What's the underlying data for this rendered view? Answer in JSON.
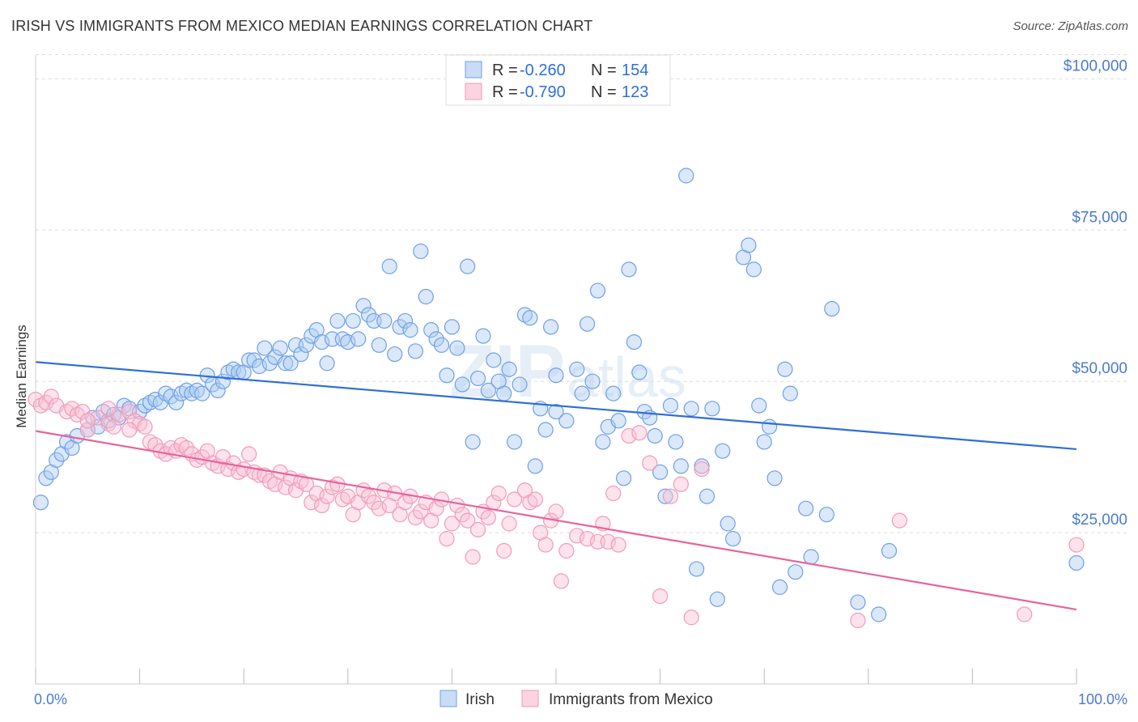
{
  "title": "IRISH VS IMMIGRANTS FROM MEXICO MEDIAN EARNINGS CORRELATION CHART",
  "source": "Source: ZipAtlas.com",
  "watermark": {
    "a": "ZIP",
    "b": "atlas"
  },
  "colors": {
    "irish": "#6fa0e6",
    "irish_line": "#2f6fd6",
    "mexico": "#f29bb8",
    "mexico_line": "#e8649a",
    "grid": "#dddddd"
  },
  "legend": {
    "rows": [
      {
        "r_label": "R =",
        "r_value": "-0.260",
        "n_label": "N =",
        "n_value": "154"
      },
      {
        "r_label": "R =",
        "r_value": "-0.790",
        "n_label": "N =",
        "n_value": "123"
      }
    ]
  },
  "bottom_legend": [
    "Irish",
    "Immigrants from Mexico"
  ],
  "chart_data": {
    "type": "scatter",
    "ylabel": "Median Earnings",
    "xlim": [
      0,
      100
    ],
    "ylim": [
      0,
      105000
    ],
    "y_ticks": [
      25000,
      50000,
      75000,
      100000
    ],
    "y_tick_labels": [
      "$25,000",
      "$50,000",
      "$75,000",
      "$100,000"
    ],
    "x_tick_labels": [
      "0.0%",
      "100.0%"
    ],
    "grid": "horizontal dashed",
    "legend_position": "top-center",
    "series": [
      {
        "name": "Irish",
        "trend": {
          "x": [
            0,
            100
          ],
          "y": [
            53200,
            38800
          ]
        },
        "points": [
          [
            0.5,
            30000
          ],
          [
            1,
            34000
          ],
          [
            1.5,
            35000
          ],
          [
            2,
            37000
          ],
          [
            2.5,
            38000
          ],
          [
            3,
            40000
          ],
          [
            3.5,
            39000
          ],
          [
            4,
            41000
          ],
          [
            5,
            42000
          ],
          [
            5.5,
            44000
          ],
          [
            6,
            42500
          ],
          [
            6.5,
            45000
          ],
          [
            7,
            43500
          ],
          [
            7.5,
            44500
          ],
          [
            8,
            44000
          ],
          [
            8.5,
            46000
          ],
          [
            9,
            45500
          ],
          [
            10,
            45000
          ],
          [
            10.5,
            46000
          ],
          [
            11,
            46500
          ],
          [
            11.5,
            47000
          ],
          [
            12,
            46500
          ],
          [
            12.5,
            48000
          ],
          [
            13,
            47500
          ],
          [
            13.5,
            46500
          ],
          [
            14,
            48000
          ],
          [
            14.5,
            48500
          ],
          [
            15,
            48000
          ],
          [
            15.5,
            48500
          ],
          [
            16,
            48000
          ],
          [
            16.5,
            51000
          ],
          [
            17,
            49500
          ],
          [
            17.5,
            48500
          ],
          [
            18,
            50000
          ],
          [
            18.5,
            51500
          ],
          [
            19,
            52000
          ],
          [
            19.5,
            51500
          ],
          [
            20,
            51500
          ],
          [
            20.5,
            53500
          ],
          [
            21,
            53500
          ],
          [
            21.5,
            52500
          ],
          [
            22,
            55500
          ],
          [
            22.5,
            53000
          ],
          [
            23,
            54000
          ],
          [
            23.5,
            55500
          ],
          [
            24,
            53000
          ],
          [
            24.5,
            53000
          ],
          [
            25,
            56000
          ],
          [
            25.5,
            54500
          ],
          [
            26,
            56000
          ],
          [
            26.5,
            57500
          ],
          [
            27,
            58500
          ],
          [
            27.5,
            56500
          ],
          [
            28,
            53000
          ],
          [
            28.5,
            57000
          ],
          [
            29,
            60000
          ],
          [
            29.5,
            57000
          ],
          [
            30,
            56500
          ],
          [
            30.5,
            60000
          ],
          [
            31,
            57000
          ],
          [
            31.5,
            62500
          ],
          [
            32,
            61000
          ],
          [
            32.5,
            60000
          ],
          [
            33,
            56000
          ],
          [
            33.5,
            60000
          ],
          [
            34,
            69000
          ],
          [
            34.5,
            54500
          ],
          [
            35,
            59000
          ],
          [
            35.5,
            60000
          ],
          [
            36,
            58500
          ],
          [
            36.5,
            55000
          ],
          [
            37,
            71500
          ],
          [
            37.5,
            64000
          ],
          [
            38,
            58500
          ],
          [
            38.5,
            57000
          ],
          [
            39,
            56000
          ],
          [
            39.5,
            51000
          ],
          [
            40,
            59000
          ],
          [
            40.5,
            55500
          ],
          [
            41,
            49500
          ],
          [
            41.5,
            69000
          ],
          [
            42,
            40000
          ],
          [
            42.5,
            50500
          ],
          [
            43,
            57500
          ],
          [
            43.5,
            48500
          ],
          [
            44,
            53500
          ],
          [
            44.5,
            50000
          ],
          [
            45,
            48000
          ],
          [
            45.5,
            52000
          ],
          [
            46,
            40000
          ],
          [
            46.5,
            49500
          ],
          [
            47,
            61000
          ],
          [
            47.5,
            60500
          ],
          [
            48,
            36000
          ],
          [
            48.5,
            45500
          ],
          [
            49,
            42000
          ],
          [
            49.5,
            59000
          ],
          [
            50,
            51000
          ],
          [
            51,
            43500
          ],
          [
            52,
            52000
          ],
          [
            52.5,
            48000
          ],
          [
            53,
            59500
          ],
          [
            53.5,
            50000
          ],
          [
            54,
            65000
          ],
          [
            54.5,
            40000
          ],
          [
            55,
            42500
          ],
          [
            55.5,
            48000
          ],
          [
            56,
            43500
          ],
          [
            56.5,
            34000
          ],
          [
            57,
            68500
          ],
          [
            57.5,
            56500
          ],
          [
            58,
            51500
          ],
          [
            58.5,
            45000
          ],
          [
            59,
            44000
          ],
          [
            59.5,
            41000
          ],
          [
            60,
            35000
          ],
          [
            60.5,
            31000
          ],
          [
            61,
            46000
          ],
          [
            61.5,
            40000
          ],
          [
            62,
            36000
          ],
          [
            62.5,
            84000
          ],
          [
            63,
            45500
          ],
          [
            63.5,
            19000
          ],
          [
            64,
            36000
          ],
          [
            64.5,
            31000
          ],
          [
            65,
            45500
          ],
          [
            65.5,
            14000
          ],
          [
            66,
            38500
          ],
          [
            66.5,
            26500
          ],
          [
            67,
            24000
          ],
          [
            68,
            70500
          ],
          [
            68.5,
            72500
          ],
          [
            69,
            68500
          ],
          [
            69.5,
            46000
          ],
          [
            70,
            40000
          ],
          [
            70.5,
            42500
          ],
          [
            71,
            34000
          ],
          [
            71.5,
            16000
          ],
          [
            72,
            52000
          ],
          [
            72.5,
            48000
          ],
          [
            73,
            18500
          ],
          [
            74,
            29000
          ],
          [
            74.5,
            21000
          ],
          [
            76,
            28000
          ],
          [
            76.5,
            62000
          ],
          [
            79,
            13500
          ],
          [
            81,
            11500
          ],
          [
            82,
            22000
          ],
          [
            100,
            20000
          ],
          [
            50,
            45000
          ]
        ]
      },
      {
        "name": "Immigrants from Mexico",
        "trend": {
          "x": [
            0,
            100
          ],
          "y": [
            41800,
            12300
          ]
        },
        "points": [
          [
            0,
            47000
          ],
          [
            0.5,
            46000
          ],
          [
            1,
            46500
          ],
          [
            1.5,
            47500
          ],
          [
            2,
            46000
          ],
          [
            3,
            45000
          ],
          [
            3.5,
            45500
          ],
          [
            4,
            44500
          ],
          [
            4.5,
            45000
          ],
          [
            5,
            42000
          ],
          [
            6,
            44000
          ],
          [
            7,
            43000
          ],
          [
            7.5,
            42500
          ],
          [
            8,
            44500
          ],
          [
            9,
            45000
          ],
          [
            9.5,
            43500
          ],
          [
            10,
            43000
          ],
          [
            10.5,
            42500
          ],
          [
            11,
            40000
          ],
          [
            11.5,
            39500
          ],
          [
            12,
            38500
          ],
          [
            12.5,
            38000
          ],
          [
            13,
            39000
          ],
          [
            13.5,
            38500
          ],
          [
            14,
            39500
          ],
          [
            14.5,
            39000
          ],
          [
            15,
            38000
          ],
          [
            15.5,
            37000
          ],
          [
            16,
            37500
          ],
          [
            16.5,
            38500
          ],
          [
            17,
            36500
          ],
          [
            17.5,
            36000
          ],
          [
            18,
            37500
          ],
          [
            18.5,
            35500
          ],
          [
            19,
            36500
          ],
          [
            19.5,
            35000
          ],
          [
            20,
            35500
          ],
          [
            20.5,
            38000
          ],
          [
            21,
            35000
          ],
          [
            21.5,
            34500
          ],
          [
            22,
            34500
          ],
          [
            22.5,
            33500
          ],
          [
            23,
            33000
          ],
          [
            23.5,
            35000
          ],
          [
            24,
            32500
          ],
          [
            24.5,
            34000
          ],
          [
            25,
            32000
          ],
          [
            25.5,
            33500
          ],
          [
            26,
            33000
          ],
          [
            26.5,
            30000
          ],
          [
            27,
            31500
          ],
          [
            27.5,
            29500
          ],
          [
            28,
            31000
          ],
          [
            28.5,
            32500
          ],
          [
            29,
            33000
          ],
          [
            29.5,
            30500
          ],
          [
            30,
            31000
          ],
          [
            30.5,
            28000
          ],
          [
            31,
            30000
          ],
          [
            31.5,
            32000
          ],
          [
            32,
            31000
          ],
          [
            32.5,
            30000
          ],
          [
            33,
            29000
          ],
          [
            33.5,
            32000
          ],
          [
            34,
            29500
          ],
          [
            34.5,
            31500
          ],
          [
            35,
            28000
          ],
          [
            35.5,
            30000
          ],
          [
            36,
            31000
          ],
          [
            36.5,
            27500
          ],
          [
            37,
            28500
          ],
          [
            37.5,
            30000
          ],
          [
            38,
            27000
          ],
          [
            38.5,
            29000
          ],
          [
            39,
            30500
          ],
          [
            39.5,
            24000
          ],
          [
            40,
            26500
          ],
          [
            40.5,
            29500
          ],
          [
            41,
            28000
          ],
          [
            41.5,
            27000
          ],
          [
            42,
            21000
          ],
          [
            42.5,
            25500
          ],
          [
            43,
            28500
          ],
          [
            43.5,
            27500
          ],
          [
            44,
            30000
          ],
          [
            44.5,
            31500
          ],
          [
            45,
            22000
          ],
          [
            45.5,
            26500
          ],
          [
            46,
            30500
          ],
          [
            47,
            32000
          ],
          [
            47.5,
            30000
          ],
          [
            48,
            30500
          ],
          [
            48.5,
            25000
          ],
          [
            49,
            23000
          ],
          [
            49.5,
            27000
          ],
          [
            50,
            28500
          ],
          [
            50.5,
            17000
          ],
          [
            51,
            22000
          ],
          [
            52,
            24500
          ],
          [
            53,
            24000
          ],
          [
            54,
            23500
          ],
          [
            54.5,
            26500
          ],
          [
            55,
            23500
          ],
          [
            55.5,
            31500
          ],
          [
            56,
            23000
          ],
          [
            57,
            41000
          ],
          [
            58,
            41500
          ],
          [
            59,
            36500
          ],
          [
            60,
            14500
          ],
          [
            61,
            31000
          ],
          [
            62,
            33000
          ],
          [
            63,
            11000
          ],
          [
            64,
            35500
          ],
          [
            79,
            10500
          ],
          [
            83,
            27000
          ],
          [
            95,
            11500
          ],
          [
            100,
            23000
          ],
          [
            5,
            43500
          ],
          [
            7,
            45500
          ],
          [
            9,
            42000
          ]
        ]
      }
    ]
  }
}
